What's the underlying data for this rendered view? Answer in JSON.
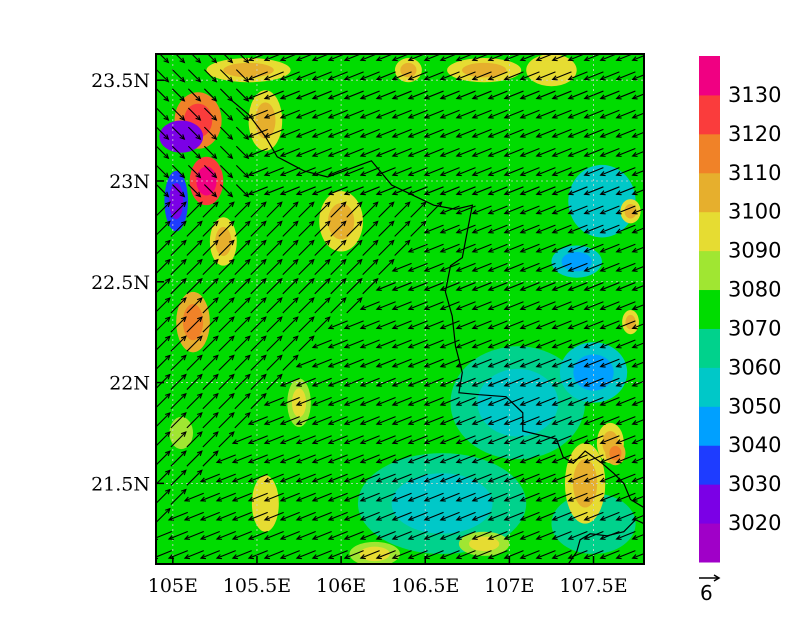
{
  "chart_data": {
    "type": "heatmap",
    "map": {
      "x_ticks": [
        {
          "lon": 105.0,
          "label": "105E"
        },
        {
          "lon": 105.5,
          "label": "105.5E"
        },
        {
          "lon": 106.0,
          "label": "106E"
        },
        {
          "lon": 106.5,
          "label": "106.5E"
        },
        {
          "lon": 107.0,
          "label": "107E"
        },
        {
          "lon": 107.5,
          "label": "107.5E"
        }
      ],
      "y_ticks": [
        {
          "lat": 23.5,
          "label": "23.5N"
        },
        {
          "lat": 23.0,
          "label": "23N"
        },
        {
          "lat": 22.5,
          "label": "22.5N"
        },
        {
          "lat": 22.0,
          "label": "22N"
        },
        {
          "lat": 21.5,
          "label": "21.5N"
        }
      ],
      "xlim": [
        104.9,
        107.8
      ],
      "ylim": [
        21.1,
        23.63
      ],
      "background_field_value": 3072,
      "field_blobs": [
        {
          "lon": 105.05,
          "lat": 23.22,
          "rlon": 0.13,
          "rlat": 0.08,
          "value": 3028
        },
        {
          "lon": 105.02,
          "lat": 22.9,
          "rlon": 0.07,
          "rlat": 0.15,
          "value": 3035
        },
        {
          "lon": 105.15,
          "lat": 23.3,
          "rlon": 0.14,
          "rlat": 0.14,
          "value": 3115
        },
        {
          "lon": 105.2,
          "lat": 23.0,
          "rlon": 0.1,
          "rlat": 0.12,
          "value": 3122
        },
        {
          "lon": 105.12,
          "lat": 22.3,
          "rlon": 0.1,
          "rlat": 0.15,
          "value": 3108
        },
        {
          "lon": 105.3,
          "lat": 22.7,
          "rlon": 0.08,
          "rlat": 0.12,
          "value": 3095
        },
        {
          "lon": 105.45,
          "lat": 23.55,
          "rlon": 0.25,
          "rlat": 0.06,
          "value": 3093
        },
        {
          "lon": 105.55,
          "lat": 23.3,
          "rlon": 0.1,
          "rlat": 0.15,
          "value": 3092
        },
        {
          "lon": 106.0,
          "lat": 22.8,
          "rlon": 0.13,
          "rlat": 0.15,
          "value": 3094
        },
        {
          "lon": 105.75,
          "lat": 21.9,
          "rlon": 0.07,
          "rlat": 0.12,
          "value": 3088
        },
        {
          "lon": 105.55,
          "lat": 21.4,
          "rlon": 0.08,
          "rlat": 0.14,
          "value": 3090
        },
        {
          "lon": 105.05,
          "lat": 21.75,
          "rlon": 0.07,
          "rlat": 0.08,
          "value": 3080
        },
        {
          "lon": 106.4,
          "lat": 23.55,
          "rlon": 0.08,
          "rlat": 0.06,
          "value": 3098
        },
        {
          "lon": 106.85,
          "lat": 23.55,
          "rlon": 0.22,
          "rlat": 0.06,
          "value": 3095
        },
        {
          "lon": 107.25,
          "lat": 23.55,
          "rlon": 0.15,
          "rlat": 0.08,
          "value": 3090
        },
        {
          "lon": 107.55,
          "lat": 22.9,
          "rlon": 0.2,
          "rlat": 0.18,
          "value": 3058
        },
        {
          "lon": 107.5,
          "lat": 22.05,
          "rlon": 0.2,
          "rlat": 0.15,
          "value": 3055
        },
        {
          "lon": 107.4,
          "lat": 22.6,
          "rlon": 0.15,
          "rlat": 0.08,
          "value": 3055
        },
        {
          "lon": 106.6,
          "lat": 21.4,
          "rlon": 0.5,
          "rlat": 0.25,
          "value": 3060
        },
        {
          "lon": 107.05,
          "lat": 21.9,
          "rlon": 0.4,
          "rlat": 0.28,
          "value": 3062
        },
        {
          "lon": 107.45,
          "lat": 21.5,
          "rlon": 0.12,
          "rlat": 0.2,
          "value": 3098
        },
        {
          "lon": 107.63,
          "lat": 21.65,
          "rlon": 0.06,
          "rlat": 0.06,
          "value": 3105
        },
        {
          "lon": 107.6,
          "lat": 21.7,
          "rlon": 0.08,
          "rlat": 0.1,
          "value": 3096
        },
        {
          "lon": 107.72,
          "lat": 22.3,
          "rlon": 0.05,
          "rlat": 0.06,
          "value": 3093
        },
        {
          "lon": 107.72,
          "lat": 22.85,
          "rlon": 0.06,
          "rlat": 0.06,
          "value": 3092
        },
        {
          "lon": 106.85,
          "lat": 21.2,
          "rlon": 0.15,
          "rlat": 0.06,
          "value": 3088
        },
        {
          "lon": 106.2,
          "lat": 21.15,
          "rlon": 0.15,
          "rlat": 0.06,
          "value": 3082
        },
        {
          "lon": 107.5,
          "lat": 21.3,
          "rlon": 0.25,
          "rlat": 0.15,
          "value": 3065
        }
      ],
      "wind_vectors": {
        "lon_step": 0.095,
        "lat_step": 0.095,
        "regions": [
          {
            "name": "westerly-northeast-flow",
            "direction": "toward SW",
            "u": -2.5,
            "v": -1.0
          },
          {
            "name": "southwest-sector-flow",
            "direction": "toward NE",
            "u": 2.0,
            "v": 2.0
          },
          {
            "name": "northwest-corner-flow",
            "direction": "toward SE",
            "u": 1.6,
            "v": -1.6
          }
        ]
      },
      "reference_vector": {
        "magnitude": 6,
        "label": "6"
      }
    },
    "colorbar": {
      "levels": [
        3010,
        3020,
        3030,
        3040,
        3050,
        3060,
        3070,
        3080,
        3090,
        3100,
        3110,
        3120,
        3130,
        3140
      ],
      "colors": [
        "#a000c8",
        "#7b00e6",
        "#1e3cff",
        "#00a0ff",
        "#00c8c8",
        "#00d28c",
        "#00dc00",
        "#a0e632",
        "#e6dc32",
        "#e6af2d",
        "#f08228",
        "#fa3c3c",
        "#f00082"
      ],
      "tick_labels": [
        {
          "value": 3020,
          "label": "3020"
        },
        {
          "value": 3030,
          "label": "3030"
        },
        {
          "value": 3040,
          "label": "3040"
        },
        {
          "value": 3050,
          "label": "3050"
        },
        {
          "value": 3060,
          "label": "3060"
        },
        {
          "value": 3070,
          "label": "3070"
        },
        {
          "value": 3080,
          "label": "3080"
        },
        {
          "value": 3090,
          "label": "3090"
        },
        {
          "value": 3100,
          "label": "3100"
        },
        {
          "value": 3110,
          "label": "3110"
        },
        {
          "value": 3120,
          "label": "3120"
        },
        {
          "value": 3130,
          "label": "3130"
        }
      ]
    },
    "coastline_lonlat": [
      [
        105.35,
        23.4
      ],
      [
        105.45,
        23.33
      ],
      [
        105.55,
        23.22
      ],
      [
        105.62,
        23.12
      ],
      [
        105.78,
        23.05
      ],
      [
        105.92,
        23.02
      ],
      [
        106.05,
        23.06
      ],
      [
        106.18,
        23.1
      ],
      [
        106.25,
        23.03
      ],
      [
        106.3,
        22.98
      ],
      [
        106.4,
        22.94
      ],
      [
        106.55,
        22.88
      ],
      [
        106.68,
        22.86
      ],
      [
        106.78,
        22.88
      ],
      [
        106.75,
        22.75
      ],
      [
        106.72,
        22.62
      ],
      [
        106.65,
        22.58
      ],
      [
        106.62,
        22.45
      ],
      [
        106.66,
        22.33
      ],
      [
        106.68,
        22.18
      ],
      [
        106.72,
        22.05
      ],
      [
        106.7,
        21.95
      ],
      [
        106.82,
        21.94
      ],
      [
        106.98,
        21.93
      ],
      [
        107.08,
        21.85
      ],
      [
        107.08,
        21.76
      ],
      [
        107.18,
        21.74
      ],
      [
        107.28,
        21.72
      ],
      [
        107.32,
        21.63
      ],
      [
        107.38,
        21.6
      ],
      [
        107.45,
        21.66
      ],
      [
        107.55,
        21.6
      ],
      [
        107.62,
        21.55
      ],
      [
        107.68,
        21.5
      ],
      [
        107.72,
        21.42
      ],
      [
        107.8,
        21.38
      ]
    ],
    "coast_south": [
      [
        107.35,
        21.1
      ],
      [
        107.4,
        21.16
      ],
      [
        107.42,
        21.22
      ],
      [
        107.48,
        21.25
      ],
      [
        107.58,
        21.24
      ],
      [
        107.68,
        21.26
      ],
      [
        107.75,
        21.32
      ],
      [
        107.8,
        21.3
      ]
    ]
  }
}
